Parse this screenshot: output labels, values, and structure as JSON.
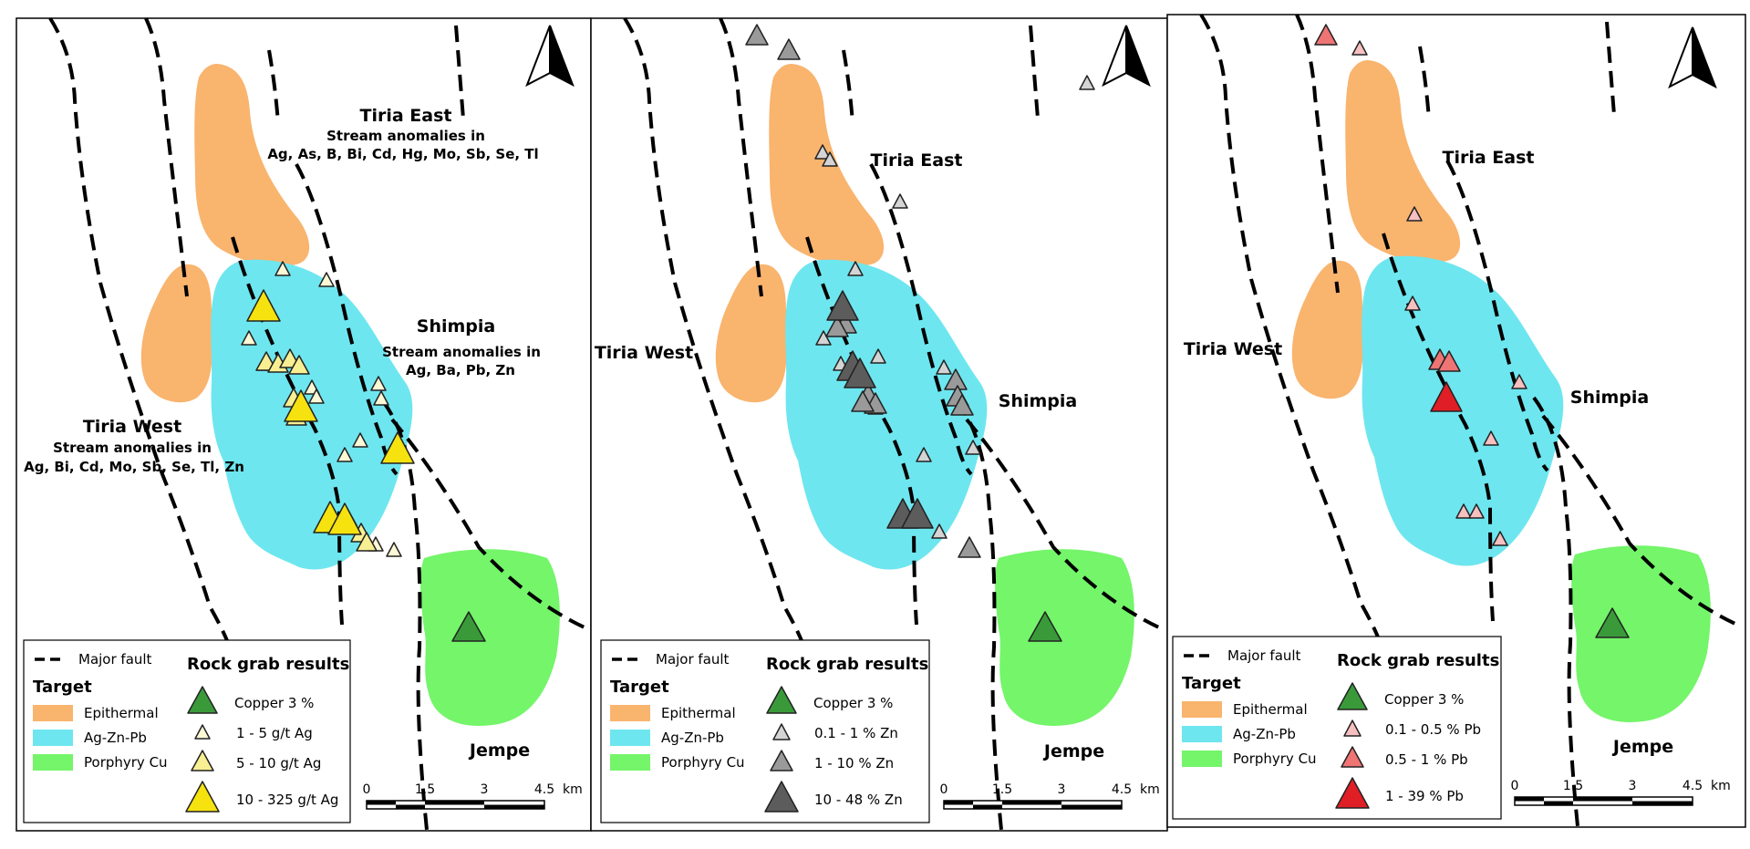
{
  "colors": {
    "epithermal": "#f9b46e",
    "ag_zn_pb": "#6ee6ef",
    "porphyry": "#74f56a",
    "copper": "#3a9a3a",
    "ag_small": "#fdf9d6",
    "ag_medium": "#f8ef93",
    "ag_large": "#f6e20f",
    "zn_small": "#d4d4d4",
    "zn_medium": "#9a9a9a",
    "zn_large": "#5c5c5c",
    "pb_small": "#f7c0c0",
    "pb_medium": "#ef7474",
    "pb_large": "#df1f25"
  },
  "icons": {
    "north_arrow": "north-arrow-icon",
    "sample": "triangle-icon"
  },
  "legend": {
    "fault": "Major fault",
    "target_title": "Target",
    "epithermal": "Epithermal",
    "ag_zn_pb": "Ag-Zn-Pb",
    "porphyry": "Porphyry Cu",
    "rock_title": "Rock grab results",
    "copper": "Copper 3 %"
  },
  "scale_bar": {
    "ticks": [
      "0",
      "1.5",
      "3",
      "4.5"
    ],
    "unit": "km"
  },
  "panels": [
    {
      "labels": {
        "tiria_east": "Tiria East",
        "tiria_west": "Tiria West",
        "shimpia": "Shimpia",
        "jempe": "Jempe",
        "east_anomaly_title": "Stream anomalies in",
        "east_anomaly_elements": "Ag, As, B, Bi, Cd, Hg, Mo, Sb, Se, Tl",
        "shimpia_anomaly_title": "Stream anomalies in",
        "shimpia_anomaly_elements": "Ag, Ba, Pb, Zn",
        "west_anomaly_title": "Stream anomalies in",
        "west_anomaly_elements": "Ag, Bi, Cd, Mo, Sb, Se, Tl, Zn"
      },
      "legend_classes": [
        "1 - 5 g/t Ag",
        "5 - 10 g/t Ag",
        "10 - 325 g/t Ag"
      ]
    },
    {
      "labels": {
        "tiria_east": "Tiria East",
        "tiria_west": "Tiria West",
        "shimpia": "Shimpia",
        "jempe": "Jempe"
      },
      "legend_classes": [
        "0.1 - 1 % Zn",
        "1 - 10 % Zn",
        "10 - 48 % Zn"
      ]
    },
    {
      "labels": {
        "tiria_east": "Tiria East",
        "tiria_west": "Tiria West",
        "shimpia": "Shimpia",
        "jempe": "Jempe"
      },
      "legend_classes": [
        "0.1 - 0.5 % Pb",
        "0.5 - 1 % Pb",
        "1 - 39 % Pb"
      ]
    }
  ]
}
